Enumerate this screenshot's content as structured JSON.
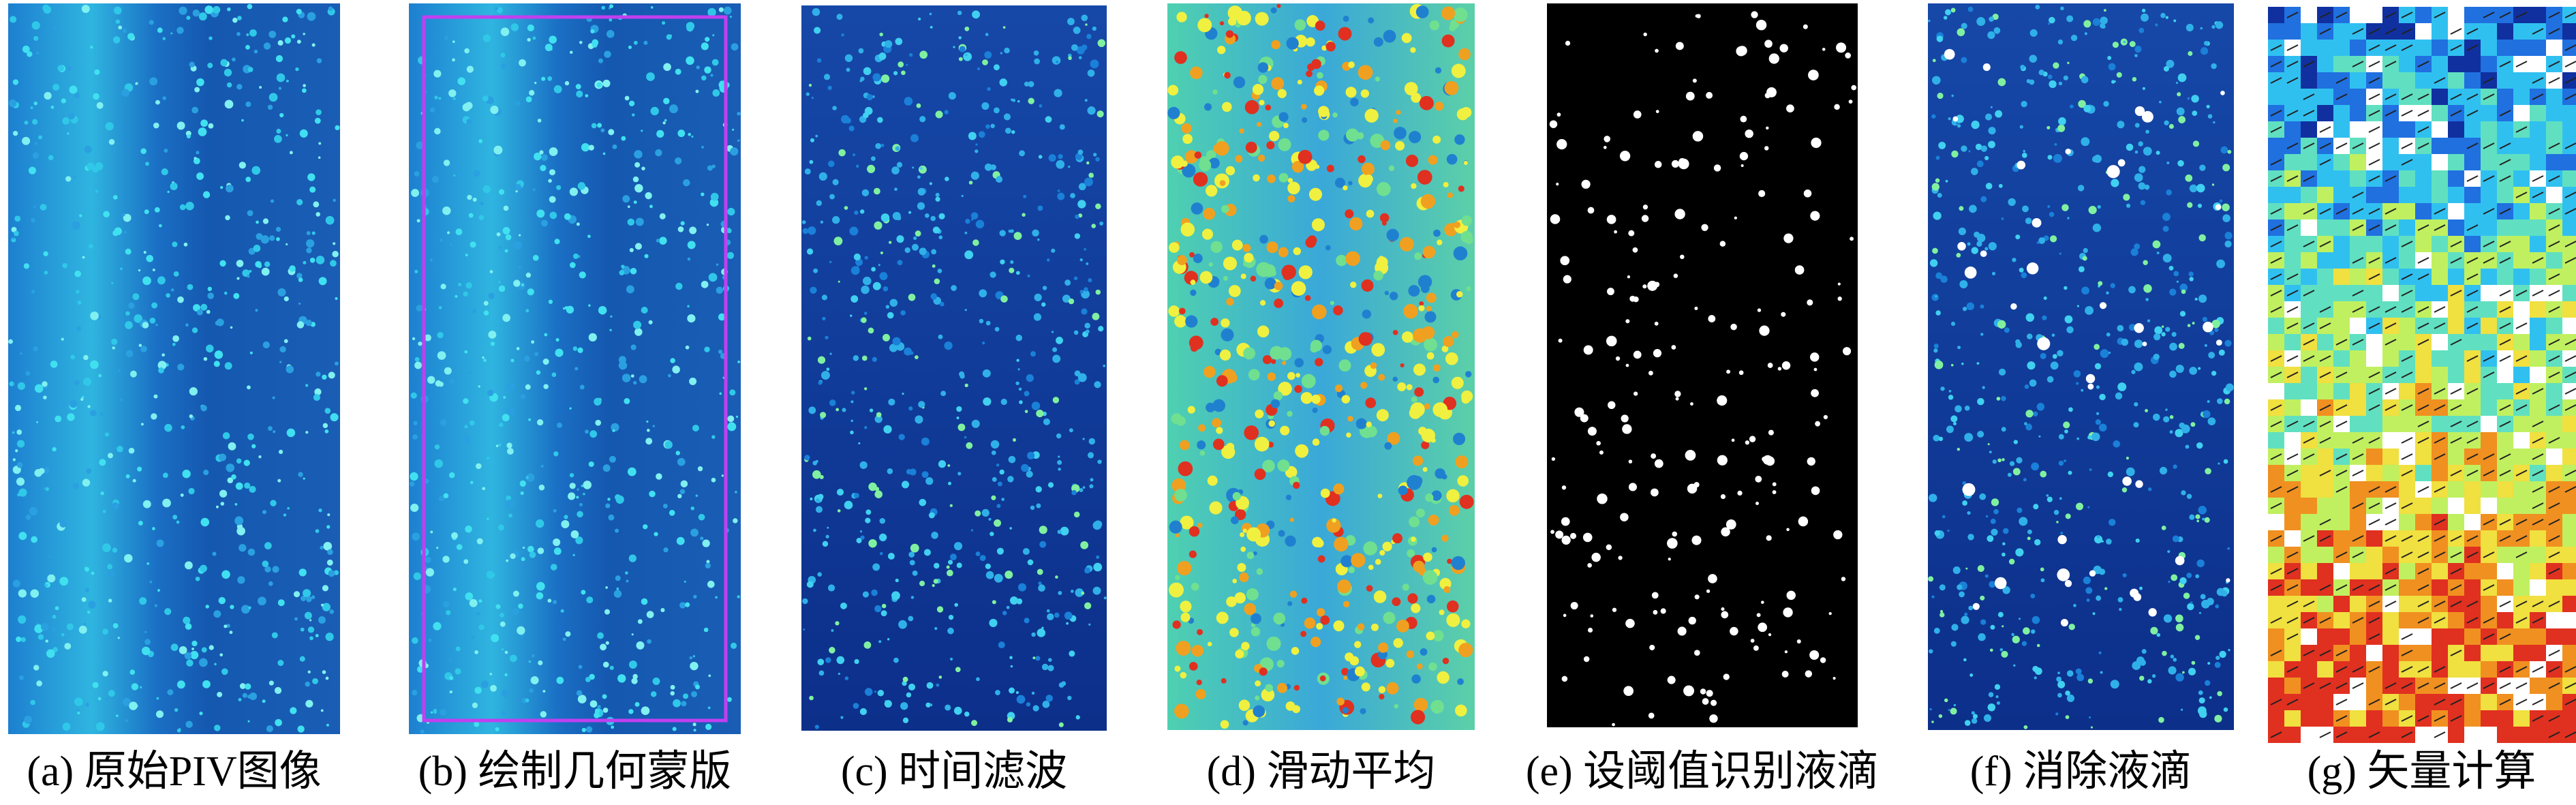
{
  "panels": [
    {
      "caption": "(a) 原始PIV图像"
    },
    {
      "caption": "(b) 绘制几何蒙版"
    },
    {
      "caption": "(c) 时间滤波"
    },
    {
      "caption": "(d) 滑动平均"
    },
    {
      "caption": "(e) 设阈值识别液滴"
    },
    {
      "caption": "(f) 消除液滴"
    },
    {
      "caption": "(g) 矢量计算"
    }
  ]
}
